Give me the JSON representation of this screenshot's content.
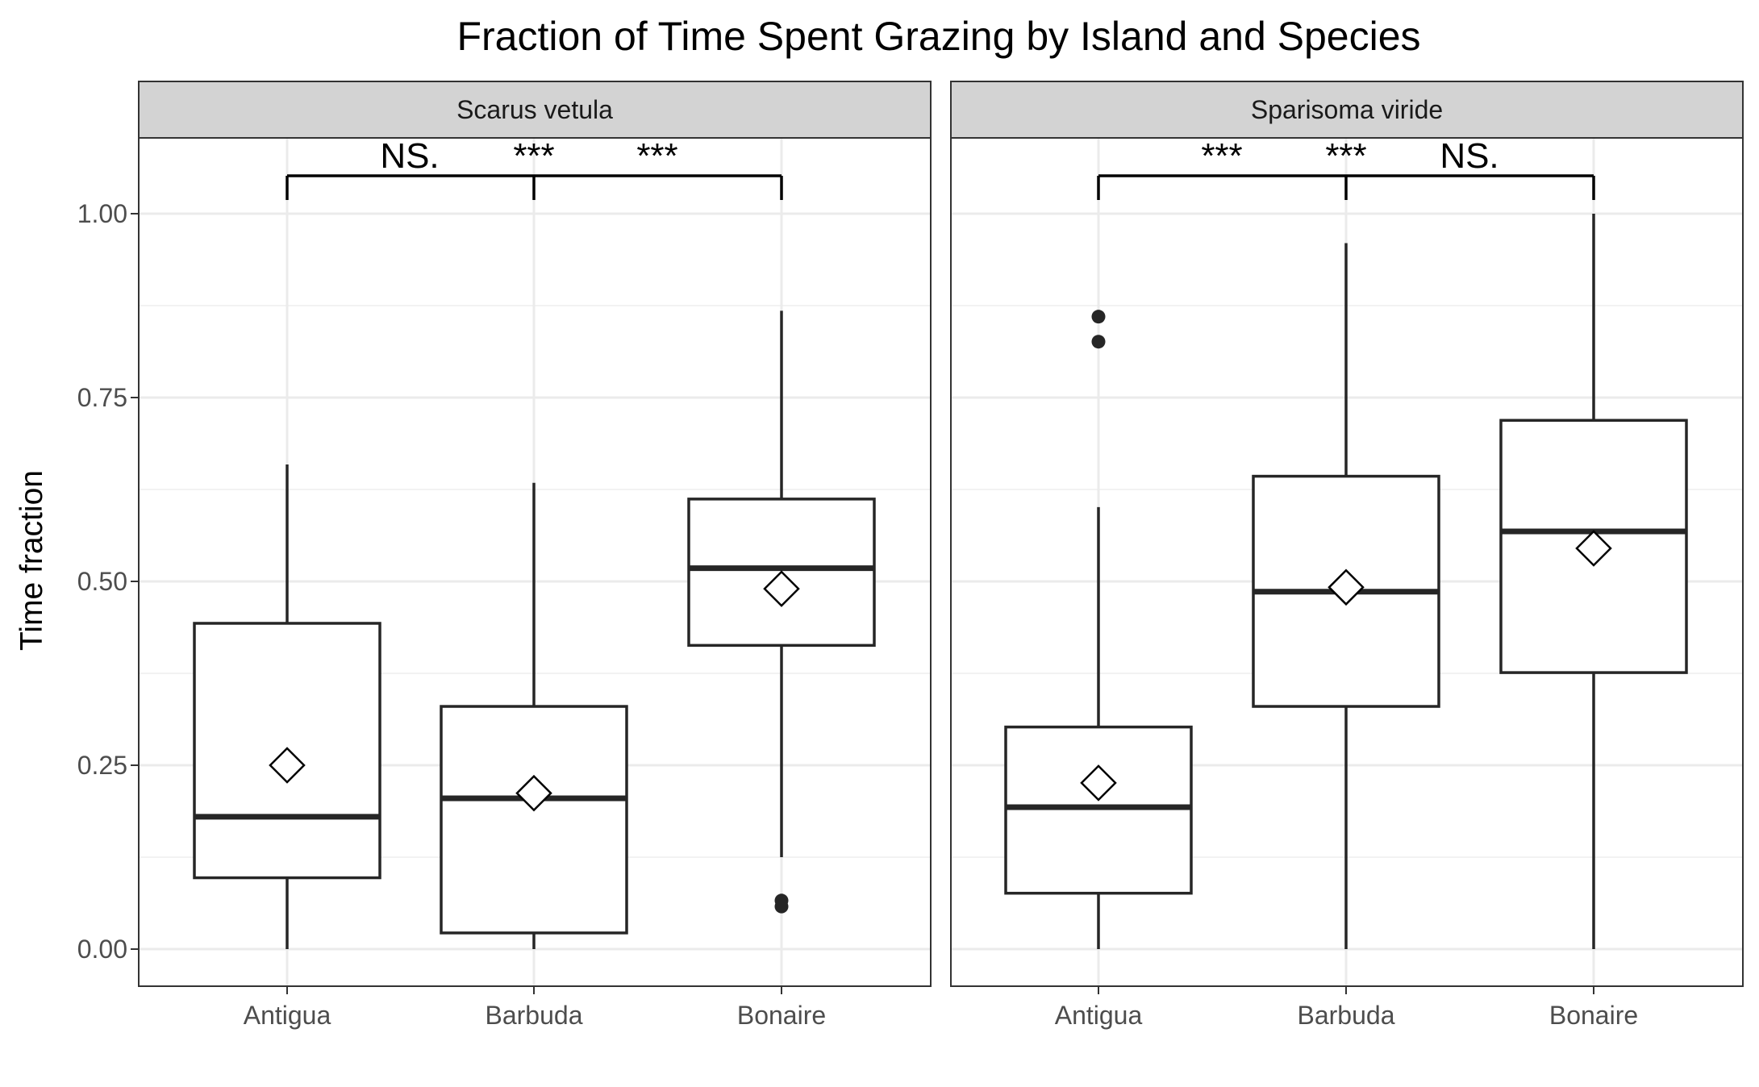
{
  "chart_data": {
    "type": "box",
    "title": "Fraction of Time Spent Grazing by Island and Species",
    "ylabel": "Time fraction",
    "xlabel": "",
    "ylim": [
      -0.05,
      1.12
    ],
    "y_ticks": [
      "0.00",
      "0.25",
      "0.50",
      "0.75",
      "1.00"
    ],
    "y_tick_values": [
      0,
      0.25,
      0.5,
      0.75,
      1.0
    ],
    "grid": true,
    "categories": [
      "Antigua",
      "Barbuda",
      "Bonaire"
    ],
    "panels": [
      {
        "name": "Scarus vetula",
        "boxes": [
          {
            "category": "Antigua",
            "whisker_low": 0.0,
            "q1": 0.097,
            "median": 0.18,
            "q3": 0.443,
            "whisker_high": 0.659,
            "mean": 0.25,
            "outliers": []
          },
          {
            "category": "Barbuda",
            "whisker_low": 0.0,
            "q1": 0.022,
            "median": 0.205,
            "q3": 0.33,
            "whisker_high": 0.634,
            "mean": 0.212,
            "outliers": []
          },
          {
            "category": "Bonaire",
            "whisker_low": 0.125,
            "q1": 0.413,
            "median": 0.518,
            "q3": 0.612,
            "whisker_high": 0.868,
            "mean": 0.49,
            "outliers": [
              0.058,
              0.066
            ]
          }
        ],
        "significance": [
          {
            "between": [
              "Antigua",
              "Barbuda"
            ],
            "label": "NS."
          },
          {
            "between": [
              "Barbuda",
              "Barbuda"
            ],
            "label": "***"
          },
          {
            "between": [
              "Barbuda",
              "Bonaire"
            ],
            "label": "***"
          }
        ]
      },
      {
        "name": "Sparisoma viride",
        "boxes": [
          {
            "category": "Antigua",
            "whisker_low": 0.0,
            "q1": 0.076,
            "median": 0.193,
            "q3": 0.302,
            "whisker_high": 0.601,
            "mean": 0.226,
            "outliers": [
              0.826,
              0.86
            ]
          },
          {
            "category": "Barbuda",
            "whisker_low": 0.0,
            "q1": 0.33,
            "median": 0.486,
            "q3": 0.643,
            "whisker_high": 0.96,
            "mean": 0.492,
            "outliers": []
          },
          {
            "category": "Bonaire",
            "whisker_low": 0.0,
            "q1": 0.376,
            "median": 0.568,
            "q3": 0.719,
            "whisker_high": 1.0,
            "mean": 0.545,
            "outliers": []
          }
        ],
        "significance": [
          {
            "between": [
              "Antigua",
              "Barbuda"
            ],
            "label": "***"
          },
          {
            "between": [
              "Barbuda",
              "Barbuda"
            ],
            "label": "***"
          },
          {
            "between": [
              "Barbuda",
              "Bonaire"
            ],
            "label": "NS."
          }
        ]
      }
    ]
  },
  "colors": {
    "box_line": "#262626",
    "strip_fill": "#d3d3d3",
    "grid_major": "#ebebeb",
    "grid_minor": "#f2f2f2",
    "panel_border": "#333333",
    "tick_label": "#4d4d4d",
    "mean_marker": "diamond-outline"
  }
}
